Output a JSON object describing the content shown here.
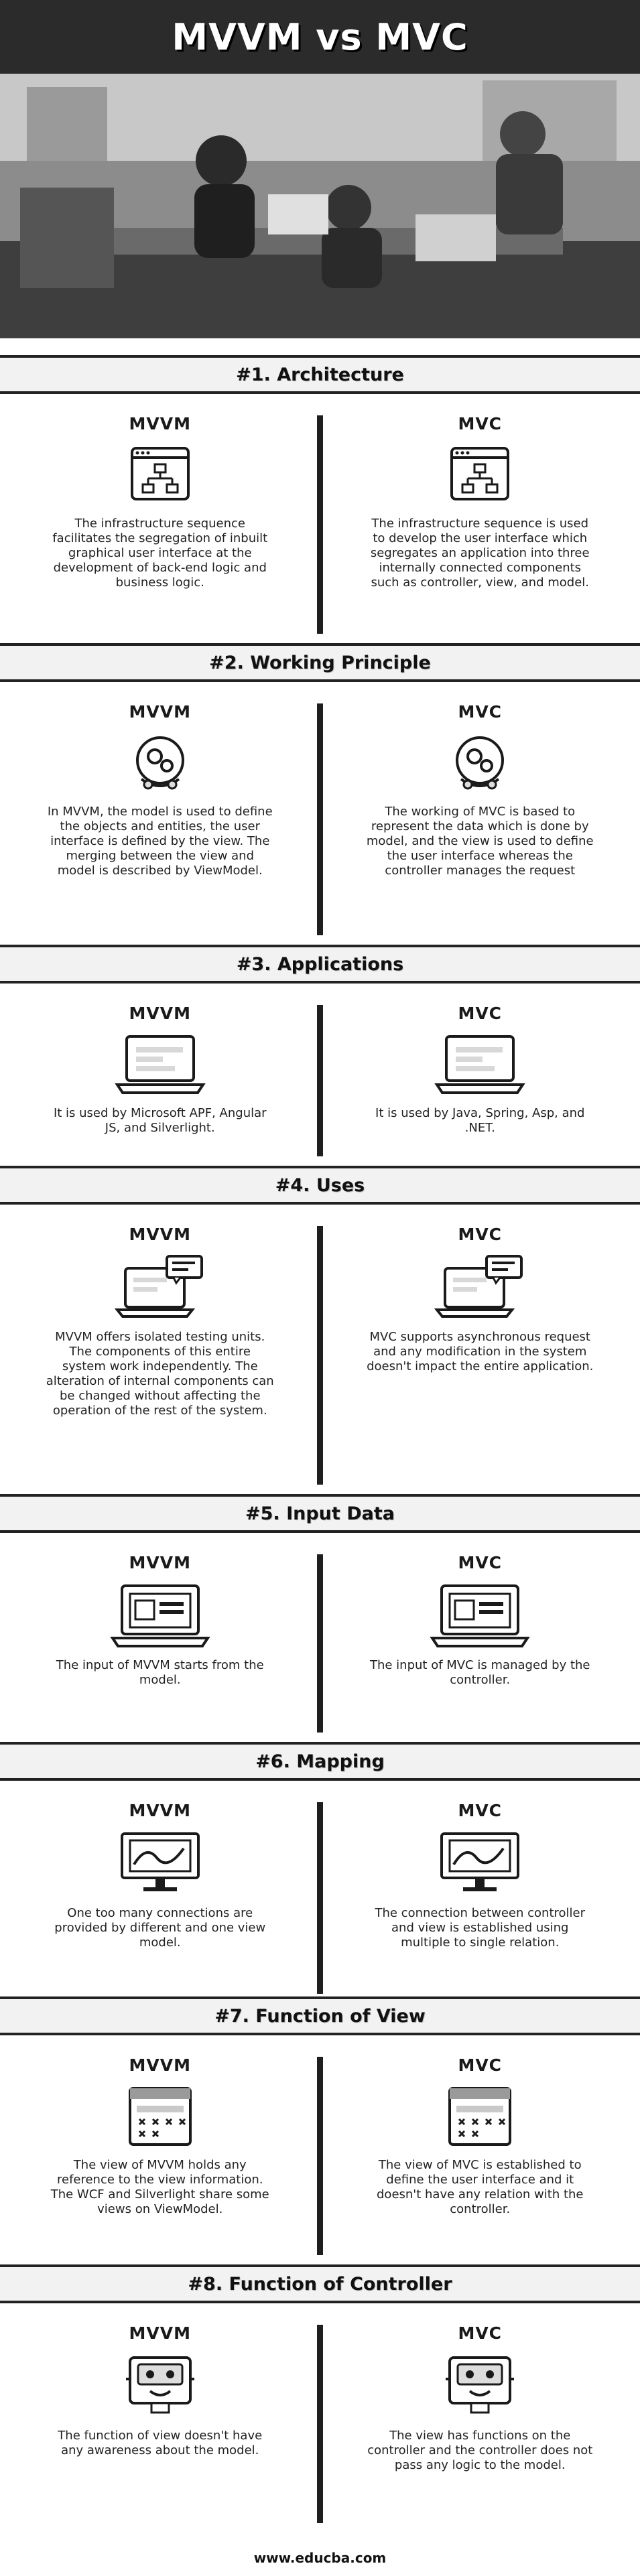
{
  "title": "MVVM vs MVC",
  "hero": {
    "alt": "people working at laptops"
  },
  "left_label": "MVVM",
  "right_label": "MVC",
  "sections": [
    {
      "heading": "#1. Architecture",
      "mvvm": "The infrastructure sequence facilitates the segregation of inbuilt graphical user interface at the development of back-end logic and business logic.",
      "mvc": "The infrastructure sequence is used to develop the user interface which segregates an application into three internally connected components such as controller, view, and model."
    },
    {
      "heading": "#2. Working Principle",
      "mvvm": "In MVVM, the model is used to define the objects and entities, the user interface is defined by the view. The merging between the view and model is described by ViewModel.",
      "mvc": "The working of MVC is based to represent the data which is done by model, and the view is used to define the user interface whereas the controller manages the request"
    },
    {
      "heading": "#3. Applications",
      "mvvm": "It is used by Microsoft APF, Angular JS, and Silverlight.",
      "mvc": "It is used by Java, Spring, Asp, and .NET."
    },
    {
      "heading": "#4. Uses",
      "mvvm": "MVVM offers isolated testing units. The components of this entire system work independently. The alteration of internal components can be changed without affecting the operation of the rest of the system.",
      "mvc": "MVC supports asynchronous request and any modification in the system doesn't impact the entire application."
    },
    {
      "heading": "#5. Input Data",
      "mvvm": "The input of MVVM starts from the model.",
      "mvc": "The input of MVC is managed by the controller."
    },
    {
      "heading": "#6. Mapping",
      "mvvm": "One too many connections are provided by different and one view model.",
      "mvc": "The connection between controller and view is established using multiple to single relation."
    },
    {
      "heading": "#7. Function of View",
      "mvvm": "The view of MVVM holds any reference to the view information. The WCF and Silverlight share some views on ViewModel.",
      "mvc": "The view of MVC is established to define the user interface and it doesn't have any relation with the controller."
    },
    {
      "heading": "#8. Function of Controller",
      "mvvm": "The function of view doesn't have any awareness about the model.",
      "mvc": "The view has functions on the controller and the controller does not pass any logic to the model."
    }
  ],
  "icons": [
    "sitemap-window-icon",
    "brain-gears-icon",
    "laptop-icon",
    "laptop-chat-icon",
    "laptop-window-icon",
    "monitor-chart-icon",
    "wireframe-icon",
    "robot-icon"
  ],
  "footer": "www.educba.com",
  "colors": {
    "banner": "#2b2b2b",
    "divider": "#1f1f1f",
    "heading_bg": "#f2f2f2"
  }
}
